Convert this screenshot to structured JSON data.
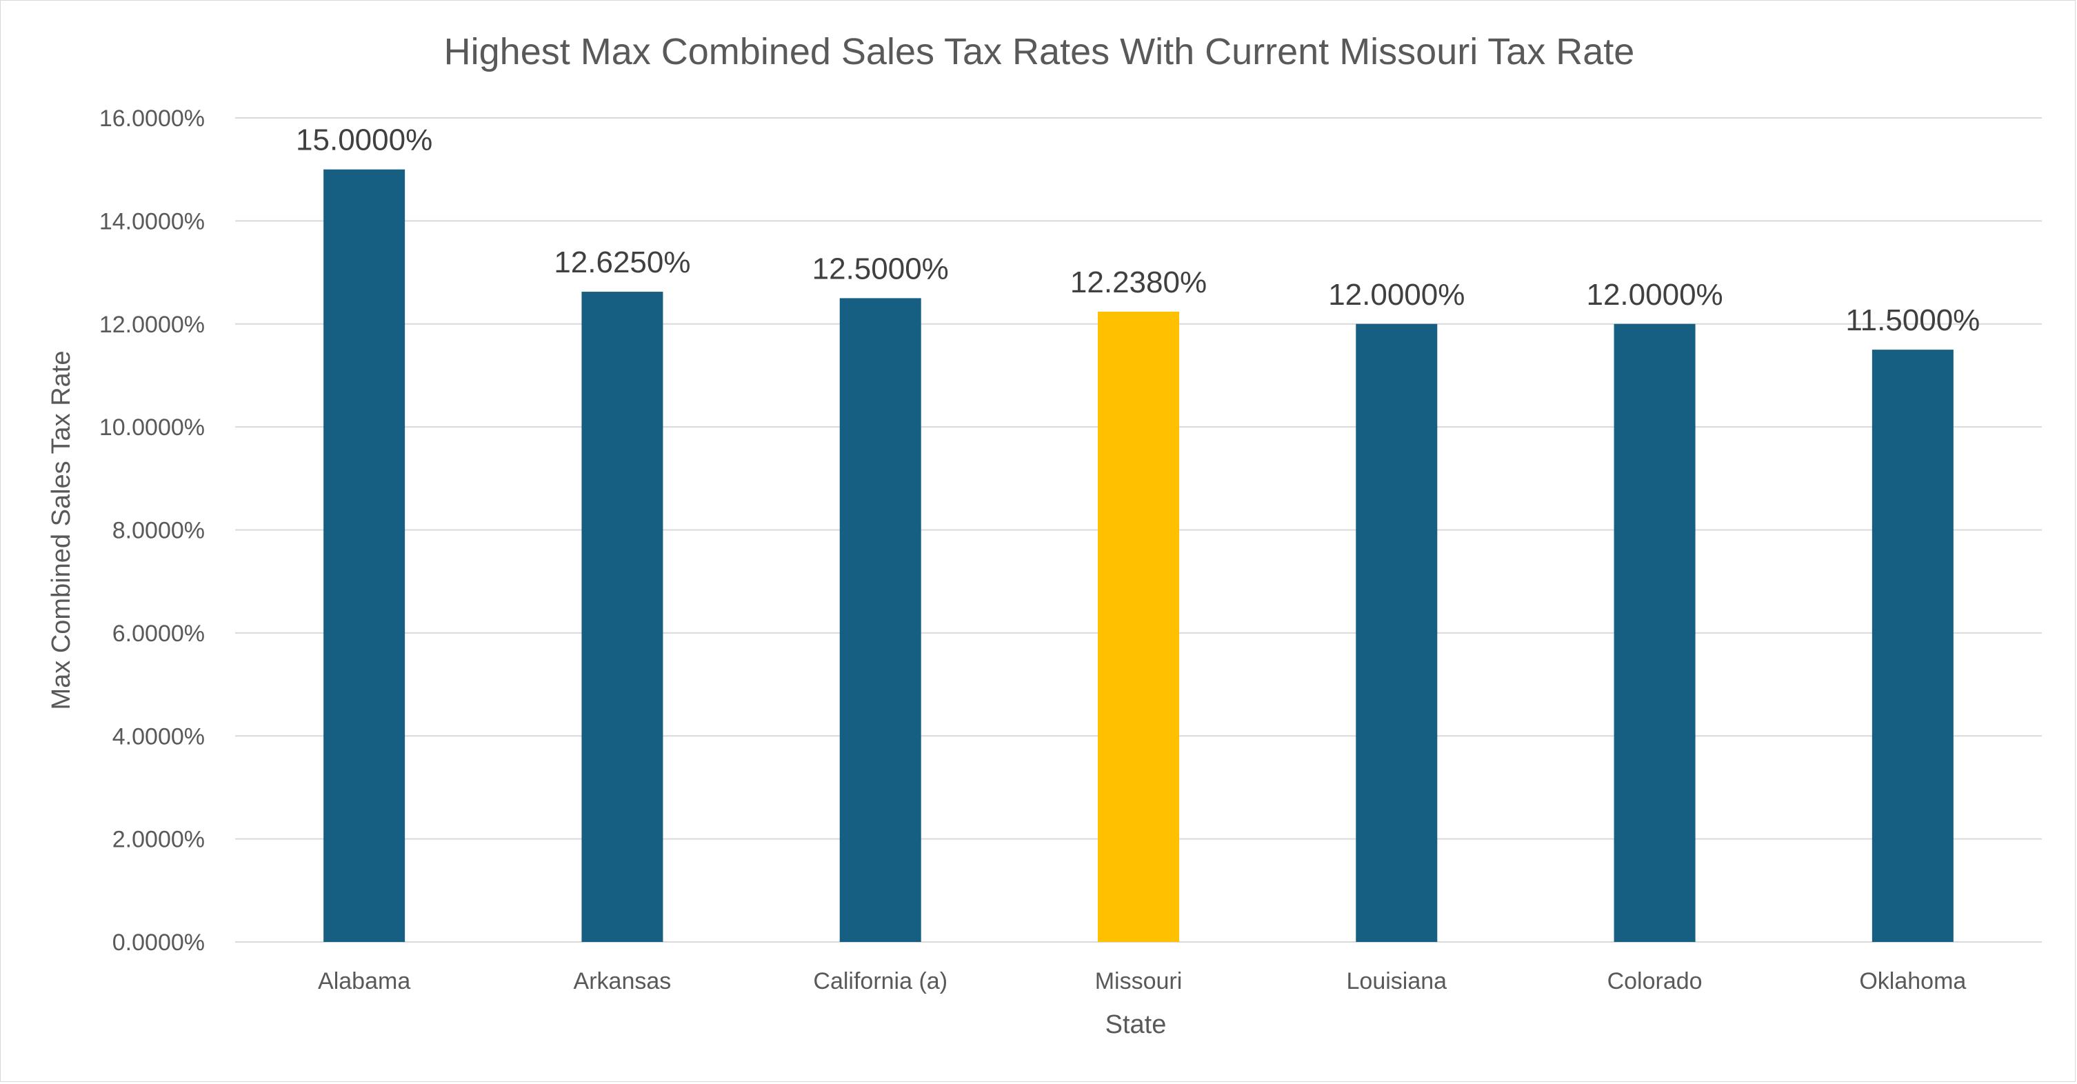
{
  "chart_data": {
    "type": "bar",
    "title": "Highest Max Combined Sales Tax Rates With Current Missouri Tax Rate",
    "xlabel": "State",
    "ylabel": "Max Combined Sales Tax Rate",
    "categories": [
      "Alabama",
      "Arkansas",
      "California (a)",
      "Missouri",
      "Louisiana",
      "Colorado",
      "Oklahoma"
    ],
    "values": [
      15.0,
      12.625,
      12.5,
      12.238,
      12.0,
      12.0,
      11.5
    ],
    "data_labels": [
      "15.0000%",
      "12.6250%",
      "12.5000%",
      "12.2380%",
      "12.0000%",
      "12.0000%",
      "11.5000%"
    ],
    "ylim": [
      0,
      16
    ],
    "yticks": [
      0,
      2,
      4,
      6,
      8,
      10,
      12,
      14,
      16
    ],
    "ytick_labels": [
      "0.0000%",
      "2.0000%",
      "4.0000%",
      "6.0000%",
      "8.0000%",
      "10.0000%",
      "12.0000%",
      "14.0000%",
      "16.0000%"
    ],
    "grid": true,
    "legend": "none",
    "colors": {
      "default_bar": "#175F82",
      "highlight_bar": "#FFC000",
      "highlight_category": "Missouri"
    }
  }
}
